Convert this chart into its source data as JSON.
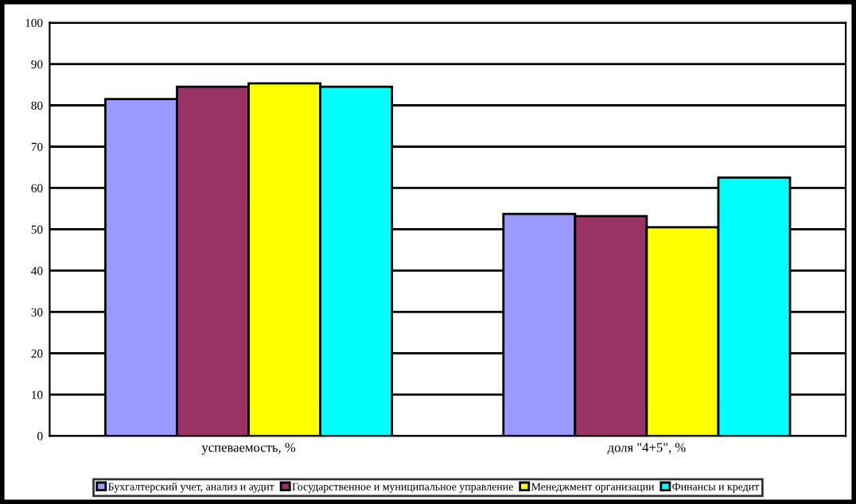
{
  "chart_data": {
    "type": "bar",
    "categories": [
      "успеваемость, %",
      "доля \"4+5\", %"
    ],
    "series": [
      {
        "name": "Бухгалтерский учет, анализ и аудит",
        "color": "#9999ff",
        "values": [
          81.5,
          53.7
        ]
      },
      {
        "name": "Государственное и муниципальное управление",
        "color": "#993366",
        "values": [
          84.5,
          53.2
        ]
      },
      {
        "name": "Менеджмент организации",
        "color": "#ffff00",
        "values": [
          85.3,
          50.5
        ]
      },
      {
        "name": "Финансы и кредит",
        "color": "#00ffff",
        "values": [
          84.5,
          62.5
        ]
      }
    ],
    "ylim": [
      0,
      100
    ],
    "yticks": [
      0,
      10,
      20,
      30,
      40,
      50,
      60,
      70,
      80,
      90,
      100
    ],
    "grid": "y",
    "legend": "bottom"
  }
}
